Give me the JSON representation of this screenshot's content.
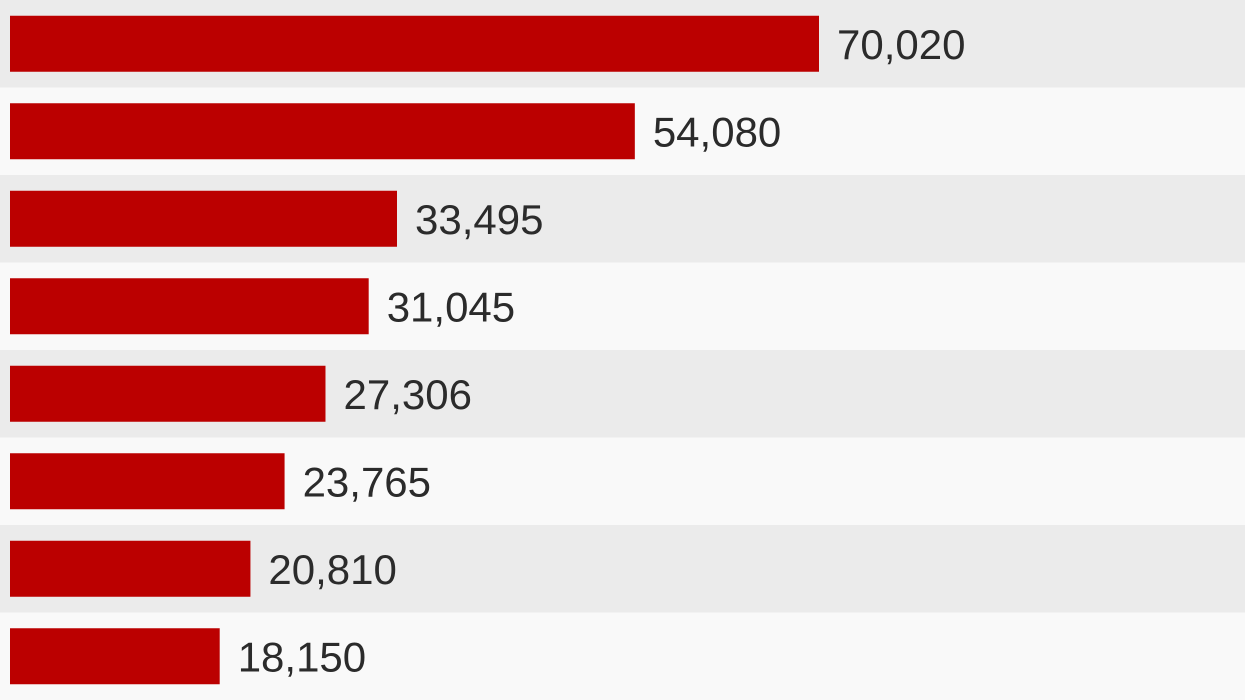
{
  "chart_data": {
    "type": "bar",
    "orientation": "horizontal",
    "values": [
      70020,
      54080,
      33495,
      31045,
      27306,
      23765,
      20810,
      18150
    ],
    "labels": [
      "70,020",
      "54,080",
      "33,495",
      "31,045",
      "27,306",
      "23,765",
      "20,810",
      "18,150"
    ],
    "xlim": [
      0,
      70020
    ],
    "bar_color": "#bb0000",
    "row_colors": [
      "#ebebeb",
      "#f9f9f9"
    ],
    "label_color": "#2b2b2b",
    "grid": false,
    "legend": "none"
  }
}
